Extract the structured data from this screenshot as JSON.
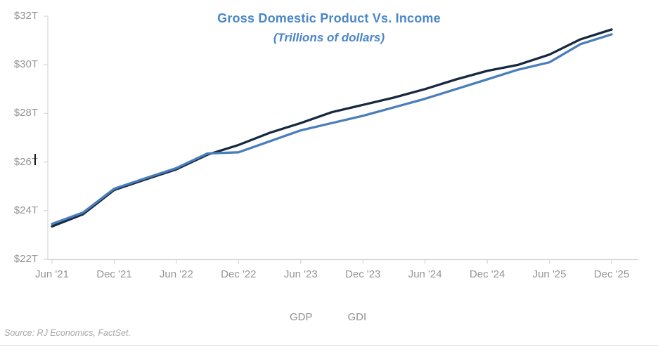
{
  "title": "Gross Domestic Product Vs. Income",
  "subtitle": "(Trillions of dollars)",
  "source": "Source: RJ Economics, FactSet.",
  "legend": {
    "gdp": "GDP",
    "gdi": "GDI"
  },
  "colors": {
    "title": "#4a86c8",
    "gdp_line": "#16293f",
    "gdi_line": "#4a7ebb",
    "axis": "#d6d6d6",
    "tick_label": "#949494",
    "legend_text": "#8f8f8f",
    "source_text": "#a6a6a6"
  },
  "chart_data": {
    "type": "line",
    "title": "Gross Domestic Product Vs. Income",
    "subtitle": "(Trillions of dollars)",
    "x": [
      "Jun '21",
      "Sep '21",
      "Dec '21",
      "Mar '22",
      "Jun '22",
      "Sep '22",
      "Dec '22",
      "Mar '23",
      "Jun '23",
      "Sep '23",
      "Dec '23",
      "Mar '24",
      "Jun '24",
      "Sep '24",
      "Dec '24",
      "Mar '25",
      "Jun '25",
      "Sep '25",
      "Dec '25"
    ],
    "x_tick_labels": [
      "Jun '21",
      "Dec '21",
      "Jun '22",
      "Dec '22",
      "Jun '23",
      "Dec '23",
      "Jun '24",
      "Dec '24",
      "Jun '25",
      "Dec '25"
    ],
    "y_tick_labels": [
      "$22T",
      "$24T",
      "$26T",
      "$28T",
      "$30T",
      "$32T"
    ],
    "y_tick_values": [
      22,
      24,
      26,
      28,
      30,
      32
    ],
    "ylim": [
      22,
      32
    ],
    "grid": false,
    "legend_position": "bottom",
    "series": [
      {
        "name": "GDP",
        "color": "#16293f",
        "values": [
          23.35,
          23.85,
          24.85,
          25.28,
          25.7,
          26.3,
          26.7,
          27.2,
          27.6,
          28.05,
          28.35,
          28.65,
          29.0,
          29.4,
          29.75,
          30.0,
          30.42,
          31.05,
          31.45
        ]
      },
      {
        "name": "GDI",
        "color": "#4a7ebb",
        "values": [
          23.45,
          23.92,
          24.9,
          25.33,
          25.75,
          26.35,
          26.4,
          26.85,
          27.3,
          27.6,
          27.9,
          28.25,
          28.6,
          29.0,
          29.4,
          29.8,
          30.1,
          30.85,
          31.25
        ]
      }
    ]
  }
}
